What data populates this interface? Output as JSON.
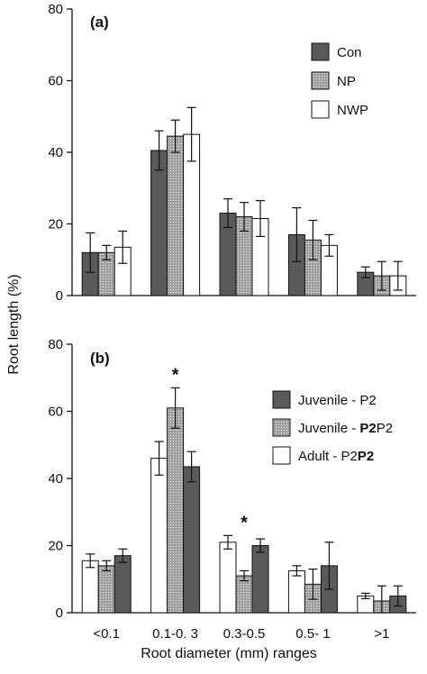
{
  "chart_data": [
    {
      "panel": "(a)",
      "type": "bar",
      "ylabel": "Root length (%)",
      "ylim": [
        0,
        80
      ],
      "yticks": [
        0,
        20,
        40,
        60,
        80
      ],
      "categories": [
        "<0.1",
        "0.1-0. 3",
        "0.3-0.5",
        "0.5- 1",
        ">1"
      ],
      "series": [
        {
          "name": "Con",
          "color": "#5a5a5a",
          "pattern": "solid",
          "values": [
            12,
            40.5,
            23,
            17,
            6.5
          ],
          "errors": [
            5.5,
            5.5,
            4,
            7.5,
            1.5
          ]
        },
        {
          "name": "NP",
          "color": "#b8b8b8",
          "pattern": "stipple",
          "values": [
            12,
            44.5,
            22,
            15.5,
            5.5
          ],
          "errors": [
            2,
            4.5,
            4,
            5.5,
            4
          ]
        },
        {
          "name": "NWP",
          "color": "#ffffff",
          "pattern": "none",
          "values": [
            13.5,
            45,
            21.5,
            14,
            5.5
          ],
          "errors": [
            4.5,
            7.5,
            5,
            3,
            4
          ]
        }
      ],
      "legend": "top-right"
    },
    {
      "panel": "(b)",
      "type": "bar",
      "ylabel": "Root length (%)",
      "xlabel": "Root diameter (mm) ranges",
      "ylim": [
        0,
        80
      ],
      "yticks": [
        0,
        20,
        40,
        60,
        80
      ],
      "categories": [
        "<0.1",
        "0.1-0. 3",
        "0.3-0.5",
        "0.5- 1",
        ">1"
      ],
      "series": [
        {
          "name": "Adult - P2P2",
          "name_plain": "Adult - P2",
          "name_bold": "P2",
          "color": "#ffffff",
          "pattern": "none",
          "values": [
            15.5,
            46,
            21,
            12.5,
            5
          ],
          "errors": [
            2,
            5,
            2,
            1.5,
            0.8
          ]
        },
        {
          "name": "Juvenile - P2P2",
          "name_plain": "Juvenile - ",
          "name_bold": "P2",
          "name_suffix": "P2",
          "color": "#b8b8b8",
          "pattern": "stipple",
          "values": [
            14,
            61,
            11,
            8.5,
            3.5
          ],
          "errors": [
            1.5,
            6,
            1.5,
            4.5,
            4.5
          ]
        },
        {
          "name": "Juvenile - P2",
          "color": "#5a5a5a",
          "pattern": "solid",
          "values": [
            17,
            43.5,
            20,
            14,
            5
          ],
          "errors": [
            2,
            4.5,
            2,
            7,
            3
          ]
        }
      ],
      "legend_order": [
        2,
        1,
        0
      ],
      "annotations": [
        {
          "category_index": 1,
          "text": "*"
        },
        {
          "category_index": 2,
          "text": "*"
        }
      ],
      "legend": "top-right"
    }
  ]
}
